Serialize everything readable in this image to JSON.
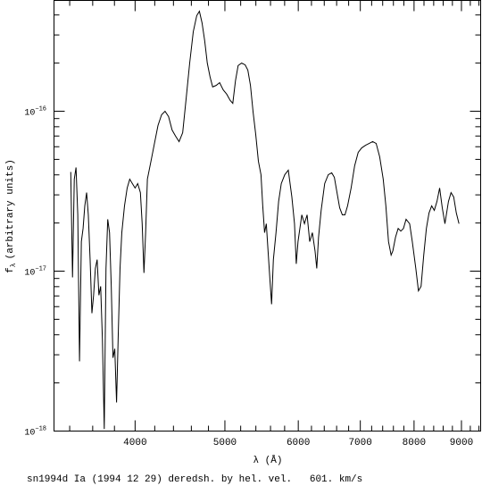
{
  "chart_data": {
    "type": "line",
    "color": "#000000",
    "xlabel": "λ (Å)",
    "ylabel": {
      "main": "f",
      "sub": "λ",
      "rest": "(arbitrary units)"
    },
    "caption": "sn1994d Ia (1994 12 29) deredsh. by hel. vel.   601. km/s",
    "xscale": "log",
    "yscale": "log",
    "xlim": [
      3270,
      9440
    ],
    "ylim": [
      1e-18,
      4.93e-16
    ],
    "xticks": [
      4000,
      5000,
      6000,
      7000,
      8000,
      9000
    ],
    "xticks_minor": [
      3400,
      3600,
      3800,
      4200,
      4400,
      4600,
      4800,
      5200,
      5400,
      5600,
      5800,
      6200,
      6400,
      6600,
      6800,
      7200,
      7400,
      7600,
      7800,
      8200,
      8400,
      8600,
      8800,
      9200,
      9400
    ],
    "yticks": [
      {
        "value": 1e-18,
        "label": "10",
        "exponent": "−18"
      },
      {
        "value": 1e-17,
        "label": "10",
        "exponent": "−17"
      },
      {
        "value": 1e-16,
        "label": "10",
        "exponent": "−16"
      }
    ],
    "yticks_minor": [
      2e-18,
      3e-18,
      4e-18,
      5e-18,
      6e-18,
      7e-18,
      8e-18,
      9e-18,
      2e-17,
      3e-17,
      4e-17,
      5e-17,
      6e-17,
      7e-17,
      8e-17,
      9e-17,
      2e-16,
      3e-16,
      4e-16
    ],
    "x": [
      3409,
      3424,
      3439,
      3454,
      3469,
      3484,
      3500,
      3515,
      3530,
      3546,
      3561,
      3577,
      3593,
      3608,
      3624,
      3640,
      3656,
      3672,
      3688,
      3705,
      3721,
      3737,
      3754,
      3770,
      3786,
      3803,
      3820,
      3837,
      3853,
      3870,
      3896,
      3922,
      3947,
      3973,
      4000,
      4026,
      4053,
      4071,
      4089,
      4106,
      4124,
      4161,
      4197,
      4234,
      4272,
      4309,
      4347,
      4385,
      4424,
      4462,
      4502,
      4541,
      4581,
      4622,
      4662,
      4693,
      4724,
      4755,
      4786,
      4818,
      4850,
      4892,
      4935,
      4979,
      5022,
      5066,
      5099,
      5133,
      5167,
      5212,
      5258,
      5293,
      5328,
      5363,
      5398,
      5434,
      5469,
      5493,
      5518,
      5542,
      5566,
      5590,
      5615,
      5640,
      5677,
      5714,
      5752,
      5802,
      5853,
      5905,
      5944,
      5970,
      5996,
      6053,
      6093,
      6133,
      6173,
      6214,
      6255,
      6282,
      6310,
      6351,
      6407,
      6464,
      6520,
      6563,
      6606,
      6650,
      6694,
      6738,
      6782,
      6842,
      6902,
      6963,
      7024,
      7093,
      7155,
      7218,
      7281,
      7345,
      7410,
      7459,
      7508,
      7557,
      7590,
      7640,
      7690,
      7741,
      7792,
      7843,
      7913,
      7965,
      8035,
      8088,
      8141,
      8195,
      8249,
      8303,
      8358,
      8413,
      8469,
      8525,
      8581,
      8638,
      8714,
      8770,
      8828,
      8886,
      8945
    ],
    "values": [
      4.17e-17,
      9.14e-18,
      3.76e-17,
      4.45e-17,
      2.25e-17,
      2.73e-18,
      1.53e-17,
      1.85e-17,
      2.56e-17,
      3.1e-17,
      2.25e-17,
      1.18e-17,
      5.46e-18,
      7.07e-18,
      1.04e-17,
      1.18e-17,
      7.07e-18,
      8.04e-18,
      3.72e-18,
      1.03e-18,
      1.04e-17,
      2.11e-17,
      1.74e-17,
      8.04e-18,
      2.87e-18,
      3.27e-18,
      1.51e-18,
      4.23e-18,
      1.04e-17,
      1.74e-17,
      2.56e-17,
      3.31e-17,
      3.76e-17,
      3.53e-17,
      3.31e-17,
      3.53e-17,
      3.1e-17,
      1.98e-17,
      9.75e-18,
      1.74e-17,
      3.76e-17,
      4.87e-17,
      6.29e-17,
      8.14e-17,
      9.5e-17,
      1e-16,
      9.26e-17,
      7.63e-17,
      6.98e-17,
      6.46e-17,
      7.34e-17,
      1.2e-16,
      2e-16,
      3.14e-16,
      3.96e-16,
      4.22e-16,
      3.57e-16,
      2.76e-16,
      2e-16,
      1.65e-16,
      1.42e-16,
      1.45e-16,
      1.51e-16,
      1.36e-16,
      1.28e-16,
      1.17e-16,
      1.12e-16,
      1.55e-16,
      1.93e-16,
      2e-16,
      1.95e-16,
      1.81e-16,
      1.45e-16,
      9.87e-17,
      7.16e-17,
      4.87e-17,
      4.01e-17,
      2.56e-17,
      1.74e-17,
      1.98e-17,
      1.34e-17,
      9.14e-18,
      6.21e-18,
      1.18e-17,
      1.74e-17,
      2.73e-17,
      3.53e-17,
      4.01e-17,
      4.28e-17,
      2.91e-17,
      1.98e-17,
      1.11e-17,
      1.53e-17,
      2.25e-17,
      1.98e-17,
      2.25e-17,
      1.53e-17,
      1.74e-17,
      1.34e-17,
      1.04e-17,
      1.63e-17,
      2.4e-17,
      3.53e-17,
      4.01e-17,
      4.12e-17,
      3.86e-17,
      3.1e-17,
      2.49e-17,
      2.25e-17,
      2.25e-17,
      2.56e-17,
      3.31e-17,
      4.56e-17,
      5.53e-17,
      5.9e-17,
      6.13e-17,
      6.29e-17,
      6.46e-17,
      6.29e-17,
      5.19e-17,
      3.76e-17,
      2.56e-17,
      1.53e-17,
      1.26e-17,
      1.34e-17,
      1.63e-17,
      1.85e-17,
      1.78e-17,
      1.85e-17,
      2.11e-17,
      1.98e-17,
      1.53e-17,
      1.04e-17,
      7.53e-18,
      8.04e-18,
      1.26e-17,
      1.85e-17,
      2.31e-17,
      2.56e-17,
      2.4e-17,
      2.73e-17,
      3.31e-17,
      2.49e-17,
      1.98e-17,
      2.73e-17,
      3.1e-17,
      2.91e-17,
      2.31e-17,
      1.98e-17
    ]
  }
}
